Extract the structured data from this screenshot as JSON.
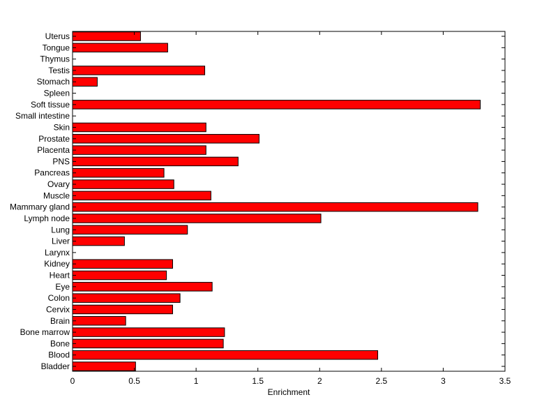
{
  "chart_data": {
    "type": "bar",
    "orientation": "horizontal",
    "categories": [
      "Bladder",
      "Blood",
      "Bone",
      "Bone marrow",
      "Brain",
      "Cervix",
      "Colon",
      "Eye",
      "Heart",
      "Kidney",
      "Larynx",
      "Liver",
      "Lung",
      "Lymph node",
      "Mammary gland",
      "Muscle",
      "Ovary",
      "Pancreas",
      "PNS",
      "Placenta",
      "Prostate",
      "Skin",
      "Small intestine",
      "Soft tissue",
      "Spleen",
      "Stomach",
      "Testis",
      "Thymus",
      "Tongue",
      "Uterus"
    ],
    "values": [
      0.51,
      2.47,
      1.22,
      1.23,
      0.43,
      0.81,
      0.87,
      1.13,
      0.76,
      0.81,
      0,
      0.42,
      0.93,
      2.01,
      3.28,
      1.12,
      0.82,
      0.74,
      1.34,
      1.08,
      1.51,
      1.08,
      0,
      3.3,
      0,
      0.2,
      1.07,
      0,
      0.77,
      0.55
    ],
    "title": "",
    "xlabel": "Enrichment",
    "ylabel": "",
    "xlim": [
      0,
      3.5
    ],
    "xticks": [
      "0",
      "0.5",
      "1",
      "1.5",
      "2",
      "2.5",
      "3",
      "3.5"
    ],
    "grid": false,
    "bar_color": "#ff0000",
    "edge_color": "#000000"
  }
}
